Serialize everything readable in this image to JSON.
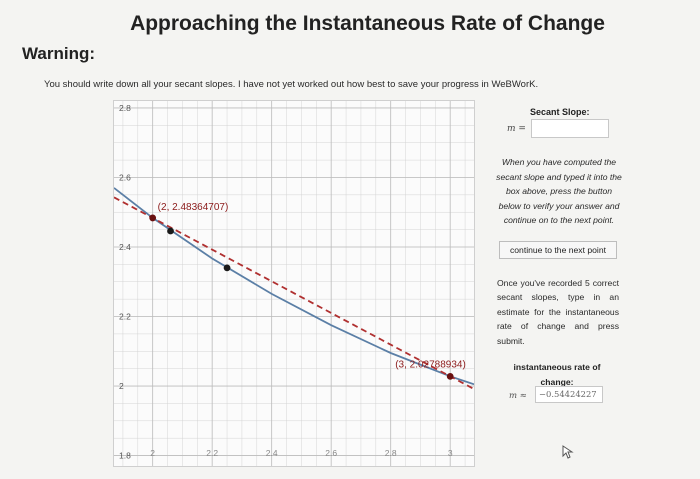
{
  "header": {
    "title": "Approaching the Instantaneous Rate of Change"
  },
  "warning": {
    "heading": "Warning:",
    "text": "You should write down all your secant slopes. I have not yet worked out how best to save your progress in WeBWorK."
  },
  "side_panel": {
    "secant_label": "Secant Slope:",
    "m_label": "m =",
    "secant_input_value": "",
    "instructions": "When you have computed the secant slope and typed it into the box above, press the button below to verify your answer and continue on to the next point.",
    "next_button_label": "continue to the next point",
    "once_text": "Once you've recorded 5 correct secant slopes, type in an estimate for the instantaneous rate of change and press submit.",
    "irc_label": "instantaneous rate of change:",
    "m_approx_label": "m ≈",
    "irc_value": "−0.54424227"
  },
  "colors": {
    "curve": "#5b7fa6",
    "secant": "#b03030",
    "point": "#1a1a1a",
    "labeled_point": "#6a1010",
    "grid": "#d4d4d4",
    "label_text": "#8b1a1a"
  },
  "chart_data": {
    "type": "line",
    "xlim": [
      1.87,
      3.08
    ],
    "ylim": [
      1.77,
      2.82
    ],
    "x_ticks": [
      "2",
      "2.2",
      "2.4",
      "2.6",
      "2.8",
      "3"
    ],
    "x_tick_values": [
      2,
      2.2,
      2.4,
      2.6,
      2.8,
      3
    ],
    "y_ticks": [
      "2.8",
      "2.6",
      "2.4",
      "2.2",
      "2",
      "1.8"
    ],
    "y_tick_values": [
      2.8,
      2.6,
      2.4,
      2.2,
      2,
      1.8
    ],
    "grid": true,
    "curve": {
      "x": [
        1.87,
        2.0,
        2.2,
        2.4,
        2.6,
        2.8,
        3.0,
        3.08
      ],
      "y": [
        2.57,
        2.4836,
        2.367,
        2.265,
        2.175,
        2.095,
        2.0279,
        2.005
      ]
    },
    "secant_line": {
      "through": [
        [
          2,
          2.48364707
        ],
        [
          3,
          2.02788934
        ]
      ]
    },
    "points": [
      {
        "x": 2,
        "y": 2.48364707
      },
      {
        "x": 2.06,
        "y": 2.446
      },
      {
        "x": 2.25,
        "y": 2.34
      },
      {
        "x": 3,
        "y": 2.02788934
      }
    ],
    "point_labels": [
      {
        "text": "(2, 2.48364707)",
        "x": 2,
        "y": 2.48364707
      },
      {
        "text": "(3, 2.02788934)",
        "x": 3,
        "y": 2.02788934
      }
    ]
  }
}
